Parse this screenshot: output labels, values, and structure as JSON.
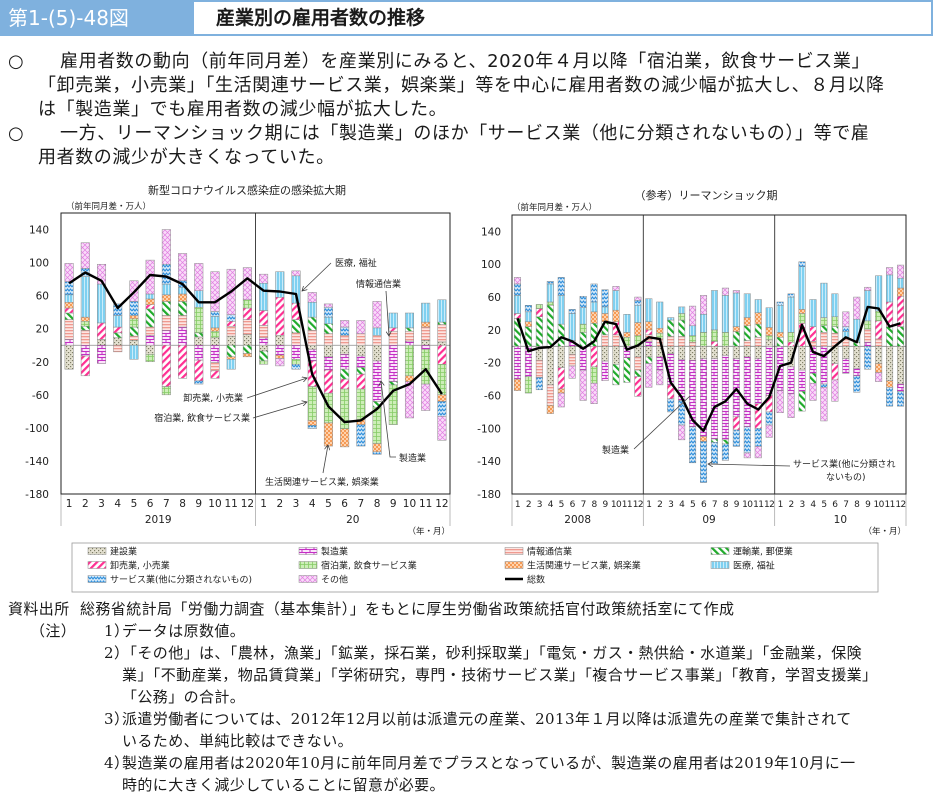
{
  "header": {
    "figure_number": "第1-(5)-48図",
    "title": "産業別の雇用者数の推移"
  },
  "summary": [
    {
      "marker": "○",
      "lines": [
        "雇用者数の動向（前年同月差）を産業別にみると、2020年４月以降「宿泊業，飲食サービス業」",
        "「卸売業，小売業」「生活関連サービス業，娯楽業」等を中心に雇用者数の減少幅が拡大し、８月以降",
        "は「製造業」でも雇用者数の減少幅が拡大した。"
      ]
    },
    {
      "marker": "○",
      "lines": [
        "一方、リーマンショック期には「製造業」のほか「サービス業（他に分類されないもの）」等で雇",
        "用者数の減少が大きくなっていた。"
      ]
    }
  ],
  "series_colors": {
    "construction": "#bdb9a3",
    "manufacturing": "#c42fc4",
    "info": "#ef9a90",
    "transport": "#1faa2a",
    "retail": "#ff2f92",
    "accommodation": "#a6dd88",
    "living": "#f59a55",
    "medical": "#7fd0f0",
    "services": "#2f8fdc",
    "other": "#e88ae8",
    "total": "#000000"
  },
  "legend": {
    "items": [
      {
        "label": "建設業",
        "key": "construction"
      },
      {
        "label": "製造業",
        "key": "manufacturing"
      },
      {
        "label": "情報通信業",
        "key": "info"
      },
      {
        "label": "運輸業, 郵便業",
        "key": "transport"
      },
      {
        "label": "卸売業, 小売業",
        "key": "retail"
      },
      {
        "label": "宿泊業, 飲食サービス業",
        "key": "accommodation"
      },
      {
        "label": "生活関連サービス業, 娯楽業",
        "key": "living"
      },
      {
        "label": "医療, 福祉",
        "key": "medical"
      },
      {
        "label": "サービス業(他に分類されないもの)",
        "key": "services"
      },
      {
        "label": "その他",
        "key": "other"
      },
      {
        "label": "総数",
        "key": "total"
      }
    ]
  },
  "chart_data": [
    {
      "type": "bar",
      "subtype": "stacked-bar-with-line",
      "title": "新型コロナウイルス感染症の感染拡大期",
      "ylabel": "（前年同月差・万人）",
      "xlabel": "（年・月）",
      "ylim": [
        -180,
        160
      ],
      "yticks": [
        140,
        100,
        60,
        20,
        -20,
        -60,
        -100,
        -140,
        -180
      ],
      "grid": false,
      "legend_position": "bottom",
      "categories": [
        "1",
        "2",
        "3",
        "4",
        "5",
        "6",
        "7",
        "8",
        "9",
        "10",
        "11",
        "12",
        "1",
        "2",
        "3",
        "4",
        "5",
        "6",
        "7",
        "8",
        "9",
        "10",
        "11",
        "12"
      ],
      "year_groups": [
        {
          "label": "2019",
          "span": 12
        },
        {
          "label": "20",
          "span": 12
        }
      ],
      "series": [
        {
          "name": "建設業",
          "key": "construction",
          "values": [
            -29,
            0,
            7,
            9,
            6,
            -11,
            0,
            0,
            10,
            9,
            11,
            13,
            -7,
            12,
            0,
            -5,
            -14,
            -11,
            -13,
            -19,
            0,
            0,
            6,
            4
          ]
        },
        {
          "name": "製造業",
          "key": "manufacturing",
          "values": [
            7,
            -13,
            -22,
            0,
            0,
            12,
            18,
            22,
            -18,
            -21,
            0,
            0,
            9,
            -12,
            -17,
            -14,
            -16,
            -18,
            -14,
            -49,
            -44,
            5,
            -5,
            0
          ]
        },
        {
          "name": "情報通信業",
          "key": "info",
          "values": [
            24,
            18,
            0,
            -8,
            5,
            10,
            18,
            14,
            0,
            -10,
            12,
            18,
            15,
            0,
            15,
            18,
            14,
            12,
            14,
            12,
            17,
            12,
            16,
            21
          ]
        },
        {
          "name": "運輸業, 郵便業",
          "key": "transport",
          "values": [
            8,
            5,
            0,
            6,
            11,
            22,
            17,
            17,
            5,
            0,
            -14,
            -10,
            -12,
            0,
            16,
            16,
            12,
            -12,
            -8,
            -7,
            -4,
            4,
            0,
            3
          ]
        },
        {
          "name": "卸売業, 小売業",
          "key": "retail",
          "values": [
            6,
            -24,
            20,
            7,
            0,
            5,
            -50,
            -40,
            -25,
            -9,
            6,
            14,
            18,
            46,
            20,
            -31,
            -28,
            -12,
            -18,
            0,
            4,
            0,
            0,
            -23
          ]
        },
        {
          "name": "宿泊業, 飲食サービス業",
          "key": "accommodation",
          "values": [
            0,
            6,
            0,
            0,
            10,
            -9,
            -10,
            0,
            31,
            8,
            0,
            10,
            -4,
            0,
            -6,
            -41,
            -36,
            -48,
            -37,
            -44,
            -48,
            -37,
            -42,
            -37
          ]
        },
        {
          "name": "生活関連サービス業, 娯楽業",
          "key": "living",
          "values": [
            7,
            5,
            0,
            0,
            4,
            7,
            8,
            9,
            0,
            4,
            -3,
            -4,
            0,
            -4,
            0,
            -6,
            -28,
            -22,
            -6,
            -10,
            0,
            -7,
            6,
            -8
          ]
        },
        {
          "name": "医療, 福祉",
          "key": "medical",
          "values": [
            9,
            49,
            47,
            14,
            -17,
            6,
            13,
            8,
            20,
            14,
            -12,
            0,
            33,
            31,
            33,
            18,
            8,
            0,
            0,
            9,
            18,
            18,
            23,
            27
          ]
        },
        {
          "name": "サービス業(他に分類されないもの)",
          "key": "services",
          "values": [
            16,
            10,
            0,
            14,
            17,
            0,
            24,
            8,
            -4,
            6,
            8,
            0,
            0,
            0,
            -6,
            -4,
            12,
            10,
            -26,
            -3,
            0,
            0,
            0,
            -18
          ]
        },
        {
          "name": "その他",
          "key": "other",
          "values": [
            22,
            31,
            24,
            0,
            25,
            41,
            42,
            33,
            33,
            48,
            55,
            39,
            11,
            -9,
            6,
            12,
            4,
            8,
            16,
            32,
            0,
            -44,
            -32,
            -29
          ]
        }
      ],
      "line": {
        "name": "総数",
        "key": "total",
        "values": [
          75,
          88,
          78,
          45,
          64,
          85,
          83,
          74,
          52,
          52,
          65,
          81,
          66,
          65,
          62,
          -35,
          -74,
          -93,
          -91,
          -77,
          -55,
          -47,
          -29,
          -59
        ]
      },
      "annotations": [
        "医療, 福祉",
        "情報通信業",
        "卸売業, 小売業",
        "宿泊業, 飲食サービス業",
        "製造業",
        "生活関連サービス業, 娯楽業"
      ]
    },
    {
      "type": "bar",
      "subtype": "stacked-bar-with-line",
      "title": "（参考）リーマンショック期",
      "ylabel": "（前年同月差・万人）",
      "xlabel": "（年・月）",
      "ylim": [
        -180,
        160
      ],
      "yticks": [
        140,
        100,
        60,
        20,
        -20,
        -60,
        -100,
        -140,
        -180
      ],
      "grid": false,
      "legend_position": "bottom",
      "categories": [
        "1",
        "2",
        "3",
        "4",
        "5",
        "6",
        "7",
        "8",
        "9",
        "10",
        "11",
        "12",
        "1",
        "2",
        "3",
        "4",
        "5",
        "6",
        "7",
        "8",
        "9",
        "10",
        "11",
        "12",
        "1",
        "2",
        "3",
        "4",
        "5",
        "6",
        "7",
        "8",
        "9",
        "10",
        "11",
        "12"
      ],
      "year_groups": [
        {
          "label": "2008",
          "span": 12
        },
        {
          "label": "09",
          "span": 12
        },
        {
          "label": "10",
          "span": 12
        }
      ],
      "series": [
        {
          "name": "建設業",
          "key": "construction",
          "values": [
            0,
            0,
            -17,
            -47,
            -26,
            -10,
            0,
            0,
            -18,
            -22,
            0,
            -13,
            -13,
            -13,
            -9,
            -16,
            -17,
            -15,
            -15,
            -11,
            -15,
            -13,
            -15,
            8,
            0,
            -25,
            -29,
            0,
            0,
            -21,
            -15,
            -27,
            0,
            -21,
            -42,
            -46
          ]
        },
        {
          "name": "製造業",
          "key": "manufacturing",
          "values": [
            -40,
            -37,
            0,
            0,
            0,
            7,
            -29,
            0,
            -24,
            0,
            -14,
            0,
            6,
            -16,
            -38,
            -50,
            -81,
            -95,
            -98,
            -103,
            -71,
            -85,
            -55,
            -60,
            -54,
            -33,
            -26,
            -33,
            -46,
            0,
            -18,
            -9,
            5,
            0,
            0,
            -9
          ]
        },
        {
          "name": "情報通信業",
          "key": "info",
          "values": [
            0,
            0,
            -21,
            -25,
            0,
            -14,
            0,
            0,
            14,
            14,
            0,
            -16,
            8,
            9,
            12,
            12,
            5,
            0,
            0,
            0,
            0,
            7,
            11,
            0,
            0,
            0,
            0,
            6,
            17,
            16,
            9,
            0,
            16,
            9,
            0,
            0
          ]
        },
        {
          "name": "運輸業, 郵便業",
          "key": "transport",
          "values": [
            34,
            24,
            36,
            50,
            27,
            0,
            17,
            28,
            16,
            -25,
            -30,
            -8,
            -8,
            0,
            20,
            20,
            0,
            0,
            -4,
            -5,
            18,
            18,
            16,
            0,
            11,
            0,
            -24,
            -12,
            8,
            8,
            0,
            5,
            0,
            0,
            24,
            24
          ]
        },
        {
          "name": "卸売業, 小売業",
          "key": "retail",
          "values": [
            6,
            0,
            10,
            0,
            -26,
            0,
            0,
            -25,
            0,
            16,
            0,
            -24,
            6,
            0,
            -17,
            0,
            0,
            0,
            6,
            0,
            -16,
            0,
            -30,
            -20,
            0,
            5,
            28,
            18,
            0,
            -20,
            0,
            0,
            0,
            22,
            30,
            37
          ]
        },
        {
          "name": "宿泊業, 飲食サービス業",
          "key": "accommodation",
          "values": [
            0,
            -20,
            5,
            4,
            0,
            0,
            10,
            -20,
            0,
            0,
            11,
            13,
            0,
            7,
            0,
            8,
            8,
            17,
            14,
            17,
            0,
            0,
            0,
            5,
            0,
            12,
            12,
            0,
            10,
            12,
            0,
            0,
            10,
            12,
            0,
            0
          ]
        },
        {
          "name": "生活関連サービス業, 娯楽業",
          "key": "living",
          "values": [
            -14,
            6,
            0,
            -10,
            -5,
            0,
            0,
            14,
            10,
            14,
            6,
            16,
            10,
            6,
            0,
            0,
            0,
            -6,
            0,
            0,
            6,
            10,
            14,
            10,
            6,
            0,
            5,
            0,
            0,
            0,
            0,
            0,
            0,
            -11,
            -8,
            10
          ]
        },
        {
          "name": "医療, 福祉",
          "key": "medical",
          "values": [
            22,
            12,
            0,
            22,
            35,
            33,
            20,
            12,
            8,
            24,
            22,
            21,
            28,
            32,
            3,
            8,
            12,
            22,
            48,
            45,
            41,
            29,
            16,
            24,
            33,
            43,
            52,
            33,
            42,
            28,
            9,
            28,
            37,
            43,
            33,
            12
          ]
        },
        {
          "name": "サービス業(他に分類されないもの)",
          "key": "services",
          "values": [
            14,
            8,
            -15,
            3,
            22,
            5,
            14,
            22,
            21,
            0,
            0,
            6,
            0,
            0,
            -16,
            -30,
            -44,
            -50,
            -26,
            -20,
            -20,
            -32,
            -22,
            -16,
            4,
            4,
            6,
            0,
            -4,
            0,
            6,
            -20,
            -28,
            0,
            -23,
            -18
          ]
        },
        {
          "name": "その他",
          "key": "other",
          "values": [
            8,
            0,
            0,
            0,
            -17,
            -15,
            -37,
            -25,
            0,
            5,
            0,
            4,
            -29,
            -18,
            0,
            -18,
            24,
            23,
            0,
            9,
            3,
            -6,
            -14,
            -15,
            -27,
            -29,
            0,
            -21,
            -41,
            -26,
            18,
            27,
            4,
            -11,
            9,
            16
          ]
        }
      ],
      "line": {
        "name": "総数",
        "key": "total",
        "values": [
          34,
          -6,
          -2,
          -1,
          11,
          6,
          -3,
          6,
          30,
          27,
          -4,
          1,
          11,
          9,
          -44,
          -62,
          -90,
          -103,
          -74,
          -67,
          -52,
          -70,
          -77,
          -62,
          -24,
          -20,
          26,
          -7,
          -12,
          0,
          11,
          5,
          48,
          46,
          24,
          28
        ]
      },
      "annotations": [
        "製造業",
        "サービス業(他に分類され",
        "ないもの)"
      ]
    }
  ],
  "footer": {
    "source_label": "資料出所",
    "source_text": "総務省統計局「労働力調査（基本集計）」をもとに厚生労働省政策統括官付政策統括室にて作成",
    "notes_label": "（注）",
    "notes": [
      {
        "num": "1）",
        "lines": [
          "データは原数値。"
        ]
      },
      {
        "num": "2）",
        "lines": [
          "「その他」は、「農林，漁業」「鉱業，採石業，砂利採取業」「電気・ガス・熱供給・水道業」「金融業，保険",
          "業」「不動産業，物品賃貸業」「学術研究，専門・技術サービス業」「複合サービス事業」「教育，学習支援業」",
          "「公務」の合計。"
        ]
      },
      {
        "num": "3）",
        "lines": [
          "派遣労働者については、2012年12月以前は派遣元の産業、2013年１月以降は派遣先の産業で集計されて",
          "いるため、単純比較はできない。"
        ]
      },
      {
        "num": "4）",
        "lines": [
          "製造業の雇用者は2020年10月に前年同月差でプラスとなっているが、製造業の雇用者は2019年10月に一",
          "時的に大きく減少していることに留意が必要。"
        ]
      }
    ]
  }
}
